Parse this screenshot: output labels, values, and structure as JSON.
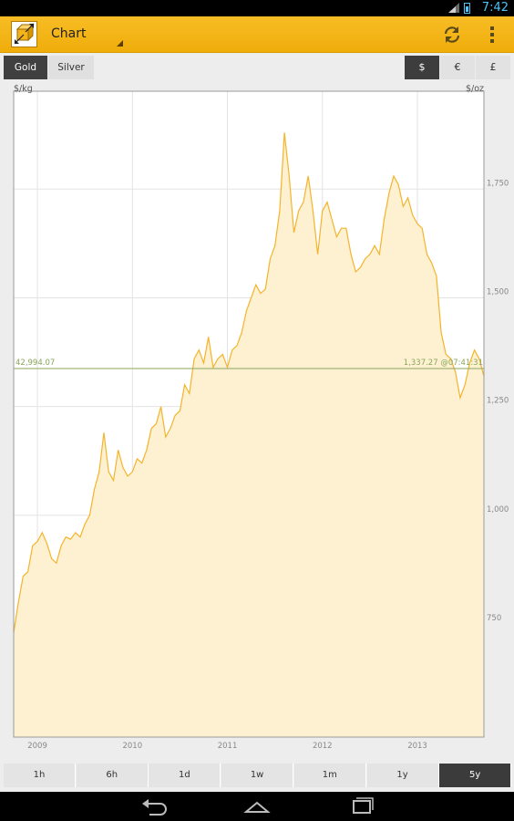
{
  "status_bar": {
    "time": "7:42"
  },
  "action_bar": {
    "title": "Chart"
  },
  "metal_tabs": [
    {
      "label": "Gold",
      "active": true
    },
    {
      "label": "Silver",
      "active": false
    }
  ],
  "currency_tabs": [
    {
      "label": "$",
      "active": true
    },
    {
      "label": "€",
      "active": false
    },
    {
      "label": "£",
      "active": false
    }
  ],
  "range_tabs": [
    {
      "label": "1h",
      "active": false
    },
    {
      "label": "6h",
      "active": false
    },
    {
      "label": "1d",
      "active": false
    },
    {
      "label": "1w",
      "active": false
    },
    {
      "label": "1m",
      "active": false
    },
    {
      "label": "1y",
      "active": false
    },
    {
      "label": "5y",
      "active": true
    }
  ],
  "colors": {
    "accent": "#f3b318",
    "line": "#f4b42a",
    "fill": "#fdf1d2",
    "ref_line": "#8aa55a",
    "active_tab": "#3b3b3b"
  },
  "chart_data": {
    "type": "area",
    "left_unit": "$/kg",
    "right_unit": "$/oz",
    "y_ticks_right": [
      "750",
      "1,000",
      "1,250",
      "1,500",
      "1,750"
    ],
    "y_tick_values": [
      750,
      1000,
      1250,
      1500,
      1750
    ],
    "x_ticks": [
      "2009",
      "2010",
      "2011",
      "2012",
      "2013"
    ],
    "x_tick_values": [
      2009.0,
      2010.0,
      2011.0,
      2012.0,
      2013.0
    ],
    "x_range": [
      2008.75,
      2013.7
    ],
    "y_range": [
      490,
      1975
    ],
    "grid": true,
    "reference_line": {
      "value": 1337.27,
      "left_label": "42,994.07",
      "right_label": "1,337.27 @07:41:31"
    },
    "series": [
      {
        "x": [
          2008.75,
          2008.8,
          2008.85,
          2008.9,
          2008.95,
          2009.0,
          2009.05,
          2009.1,
          2009.15,
          2009.2,
          2009.25,
          2009.3,
          2009.35,
          2009.4,
          2009.45,
          2009.5,
          2009.55,
          2009.6,
          2009.65,
          2009.7,
          2009.75,
          2009.8,
          2009.85,
          2009.9,
          2009.95,
          2010.0,
          2010.05,
          2010.1,
          2010.15,
          2010.2,
          2010.25,
          2010.3,
          2010.35,
          2010.4,
          2010.45,
          2010.5,
          2010.55,
          2010.6,
          2010.65,
          2010.7,
          2010.75,
          2010.8,
          2010.85,
          2010.9,
          2010.95,
          2011.0,
          2011.05,
          2011.1,
          2011.15,
          2011.2,
          2011.25,
          2011.3,
          2011.35,
          2011.4,
          2011.45,
          2011.5,
          2011.55,
          2011.6,
          2011.65,
          2011.7,
          2011.75,
          2011.8,
          2011.85,
          2011.9,
          2011.95,
          2012.0,
          2012.05,
          2012.1,
          2012.15,
          2012.2,
          2012.25,
          2012.3,
          2012.35,
          2012.4,
          2012.45,
          2012.5,
          2012.55,
          2012.6,
          2012.65,
          2012.7,
          2012.75,
          2012.8,
          2012.85,
          2012.9,
          2012.95,
          2013.0,
          2013.05,
          2013.1,
          2013.15,
          2013.2,
          2013.25,
          2013.3,
          2013.35,
          2013.4,
          2013.45,
          2013.5,
          2013.55,
          2013.6,
          2013.65,
          2013.7
        ],
        "y": [
          730,
          800,
          860,
          870,
          930,
          940,
          960,
          935,
          900,
          890,
          930,
          950,
          945,
          960,
          950,
          980,
          1000,
          1060,
          1100,
          1190,
          1100,
          1080,
          1150,
          1110,
          1090,
          1100,
          1130,
          1120,
          1150,
          1200,
          1210,
          1250,
          1180,
          1200,
          1230,
          1240,
          1300,
          1280,
          1360,
          1380,
          1350,
          1410,
          1340,
          1360,
          1370,
          1340,
          1380,
          1390,
          1420,
          1470,
          1500,
          1530,
          1510,
          1520,
          1590,
          1620,
          1700,
          1880,
          1780,
          1650,
          1700,
          1720,
          1780,
          1700,
          1600,
          1700,
          1720,
          1680,
          1640,
          1660,
          1660,
          1600,
          1560,
          1570,
          1590,
          1600,
          1620,
          1600,
          1680,
          1740,
          1780,
          1760,
          1710,
          1730,
          1690,
          1670,
          1660,
          1600,
          1580,
          1550,
          1420,
          1370,
          1360,
          1330,
          1270,
          1300,
          1350,
          1380,
          1360,
          1320
        ]
      }
    ]
  }
}
